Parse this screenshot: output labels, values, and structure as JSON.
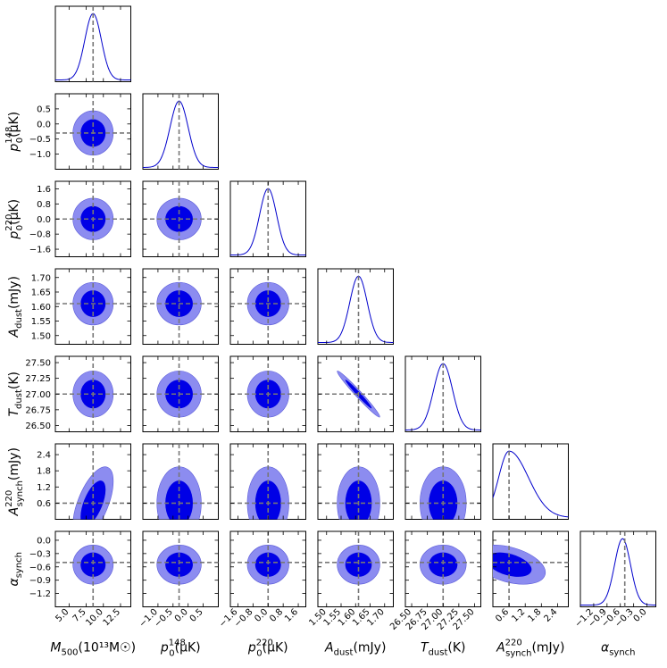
{
  "chart_data": {
    "type": "corner",
    "colors": {
      "line": "#0000cc",
      "inner_fill": "#0000e6",
      "outer_fill": "#8c8cf0",
      "truth_line": "#777777"
    },
    "params": [
      {
        "id": "M500",
        "label_base": "M",
        "label_sub": "500",
        "label_tail": "(10¹³M☉)",
        "range": [
          3.0,
          14.0
        ],
        "ticks": [
          5.0,
          7.5,
          10.0,
          12.5
        ],
        "tick_labels": [
          "5.0",
          "7.5",
          "10.0",
          "12.5"
        ],
        "truth": 8.5,
        "mean": 8.5,
        "sigma": 1.2
      },
      {
        "id": "p148",
        "label_base": "p",
        "label_sub": "0",
        "label_sup": "148",
        "label_tail": "(μK)",
        "range": [
          -1.5,
          1.0
        ],
        "ticks": [
          -1.0,
          -0.5,
          0.0,
          0.5
        ],
        "tick_labels": [
          "−1.0",
          "−0.5",
          "0.0",
          "0.5"
        ],
        "truth": -0.3,
        "mean": -0.3,
        "sigma": 0.3
      },
      {
        "id": "p220",
        "label_base": "p",
        "label_sub": "0",
        "label_sup": "220",
        "label_tail": "(μK)",
        "range": [
          -2.0,
          2.0
        ],
        "ticks": [
          -1.6,
          -0.8,
          0.0,
          0.8,
          1.6
        ],
        "tick_labels": [
          "−1.6",
          "−0.8",
          "0.0",
          "0.8",
          "1.6"
        ],
        "truth": 0.0,
        "mean": 0.0,
        "sigma": 0.45
      },
      {
        "id": "Adust",
        "label_base": "A",
        "label_sub": "dust",
        "label_tail": "(mJy)",
        "range": [
          1.47,
          1.73
        ],
        "ticks": [
          1.5,
          1.55,
          1.6,
          1.65,
          1.7
        ],
        "tick_labels": [
          "1.50",
          "1.55",
          "1.60",
          "1.65",
          "1.70"
        ],
        "truth": 1.61,
        "mean": 1.61,
        "sigma": 0.03
      },
      {
        "id": "Tdust",
        "label_base": "T",
        "label_sub": "dust",
        "label_tail": "(K)",
        "range": [
          26.4,
          27.6
        ],
        "ticks": [
          26.5,
          26.75,
          27.0,
          27.25,
          27.5
        ],
        "tick_labels": [
          "26.50",
          "26.75",
          "27.00",
          "27.25",
          "27.50"
        ],
        "truth": 27.0,
        "mean": 27.0,
        "sigma": 0.15
      },
      {
        "id": "Async",
        "label_base": "A",
        "label_sub": "synch",
        "label_sup": "220",
        "label_tail": "(mJy)",
        "range": [
          0.0,
          2.8
        ],
        "ticks": [
          0.6,
          1.2,
          1.8,
          2.4
        ],
        "tick_labels": [
          "0.6",
          "1.2",
          "1.8",
          "2.4"
        ],
        "truth": 0.6,
        "mean": 0.6,
        "sigma": 0.55
      },
      {
        "id": "alpha",
        "label_base": "α",
        "label_sub": "synch",
        "label_tail": "",
        "range": [
          -1.5,
          0.2
        ],
        "ticks": [
          -1.2,
          -0.9,
          -0.6,
          -0.3,
          0.0
        ],
        "tick_labels": [
          "−1.2",
          "−0.9",
          "−0.6",
          "−0.3",
          "0.0"
        ],
        "truth": -0.5,
        "mean": -0.55,
        "sigma": 0.18
      }
    ],
    "y_ticks_override": {
      "p148": {
        "ticks": [
          -1.0,
          -0.5,
          0.0,
          0.5
        ],
        "tick_labels": [
          "−1.0",
          "−0.5",
          "0.0",
          "0.5"
        ],
        "range": [
          -1.5,
          1.0
        ]
      },
      "p220": {
        "ticks": [
          -1.6,
          -0.8,
          0.0,
          0.8,
          1.6
        ],
        "tick_labels": [
          "−1.6",
          "−0.8",
          "0.0",
          "0.8",
          "1.6"
        ],
        "range": [
          -2.0,
          2.0
        ]
      },
      "Adust": {
        "ticks": [
          1.5,
          1.55,
          1.6,
          1.65,
          1.7
        ],
        "tick_labels": [
          "1.50",
          "1.55",
          "1.60",
          "1.65",
          "1.70"
        ],
        "range": [
          1.47,
          1.73
        ]
      },
      "Tdust": {
        "ticks": [
          26.5,
          26.75,
          27.0,
          27.25,
          27.5
        ],
        "tick_labels": [
          "26.50",
          "26.75",
          "27.00",
          "27.25",
          "27.50"
        ],
        "range": [
          26.4,
          27.6
        ]
      },
      "Async": {
        "ticks": [
          0.6,
          1.2,
          1.8,
          2.4
        ],
        "tick_labels": [
          "0.6",
          "1.2",
          "1.8",
          "2.4"
        ],
        "range": [
          0.0,
          2.8
        ]
      },
      "alpha": {
        "ticks": [
          -1.2,
          -0.9,
          -0.6,
          -0.3,
          0.0
        ],
        "tick_labels": [
          "−1.2",
          "−0.9",
          "−0.6",
          "−0.3",
          "0.0"
        ],
        "range": [
          -1.5,
          0.2
        ]
      }
    },
    "correlations": [
      {
        "pair": [
          "M500",
          "Async"
        ],
        "rho": 0.6
      },
      {
        "pair": [
          "Adust",
          "Tdust"
        ],
        "rho": -0.98
      },
      {
        "pair": [
          "Async",
          "alpha"
        ],
        "rho": -0.4
      }
    ],
    "skewed": [
      {
        "param": "Async",
        "note": "posterior truncated at lower bound 0"
      }
    ],
    "contour_levels": [
      "68%",
      "95%"
    ],
    "truth_lines": true
  }
}
